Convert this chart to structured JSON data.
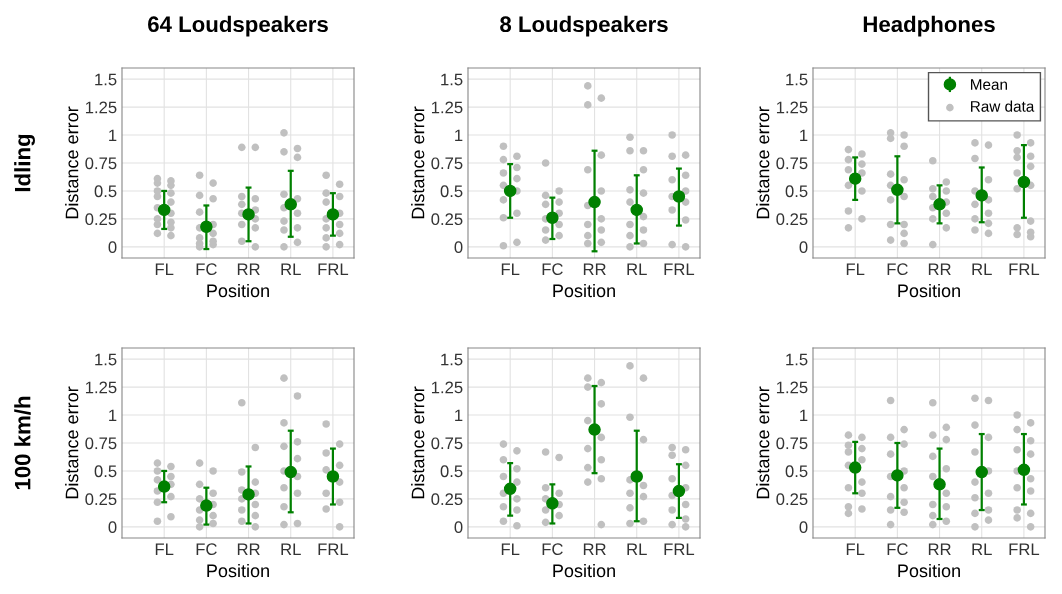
{
  "chart_data": [
    {
      "type": "scatter",
      "title": "64 Loudspeakers",
      "xlabel": "Position",
      "ylabel": "Distance error",
      "annotations": [
        "Idling"
      ],
      "categories": [
        "FL",
        "FC",
        "RR",
        "RL",
        "FRL"
      ],
      "ylim": [
        -0.1,
        1.6
      ],
      "yticks": [
        0,
        0.25,
        0.5,
        0.75,
        1,
        1.25,
        1.5
      ],
      "grid": true,
      "marker": "circle",
      "series": [
        {
          "color": "#c0c0c0",
          "x": [
            "FL",
            "FL",
            "FL",
            "FL",
            "FL",
            "FL",
            "FL",
            "FL",
            "FC",
            "FC",
            "FC",
            "FC",
            "FC",
            "FC",
            "FC",
            "RR",
            "RR",
            "RR",
            "RR",
            "RR",
            "RR",
            "RL",
            "RL",
            "RL",
            "RL",
            "RL",
            "RL",
            "RL",
            "FRL",
            "FRL",
            "FRL",
            "FRL",
            "FRL",
            "FRL",
            "FRL"
          ],
          "values": [
            0.61,
            0.57,
            0.5,
            0.45,
            0.35,
            0.25,
            0.2,
            0.12,
            0.64,
            0.46,
            0.31,
            0.17,
            0.08,
            0.03,
            0.0,
            0.89,
            0.45,
            0.38,
            0.3,
            0.2,
            0.05,
            1.02,
            0.85,
            0.47,
            0.35,
            0.23,
            0.15,
            0.0,
            0.64,
            0.48,
            0.4,
            0.25,
            0.17,
            0.08,
            0.0
          ]
        },
        {
          "color": "#c0c0c0",
          "x": [
            "FL",
            "FL",
            "FL",
            "FL",
            "FL",
            "FL",
            "FL",
            "FL",
            "FC",
            "FC",
            "FC",
            "FC",
            "FC",
            "FC",
            "RR",
            "RR",
            "RR",
            "RR",
            "RR",
            "RR",
            "RL",
            "RL",
            "RL",
            "RL",
            "RL",
            "RL",
            "FRL",
            "FRL",
            "FRL",
            "FRL",
            "FRL",
            "FRL"
          ],
          "values": [
            0.59,
            0.55,
            0.48,
            0.4,
            0.3,
            0.22,
            0.17,
            0.1,
            0.57,
            0.43,
            0.2,
            0.12,
            0.05,
            0.02,
            0.89,
            0.43,
            0.33,
            0.25,
            0.17,
            0.0,
            0.88,
            0.8,
            0.43,
            0.3,
            0.17,
            0.04,
            0.56,
            0.45,
            0.3,
            0.2,
            0.12,
            0.02
          ]
        },
        {
          "color": "#008000",
          "values": [
            0.33,
            0.18,
            0.29,
            0.38,
            0.29
          ],
          "errors": [
            [
              0.16,
              0.5
            ],
            [
              -0.02,
              0.37
            ],
            [
              0.05,
              0.53
            ],
            [
              0.09,
              0.68
            ],
            [
              0.1,
              0.48
            ]
          ]
        }
      ]
    },
    {
      "type": "scatter",
      "title": "8 Loudspeakers",
      "xlabel": "Position",
      "ylabel": "Distance error",
      "categories": [
        "FL",
        "FC",
        "RR",
        "RL",
        "FRL"
      ],
      "ylim": [
        -0.1,
        1.6
      ],
      "yticks": [
        0,
        0.25,
        0.5,
        0.75,
        1,
        1.25,
        1.5
      ],
      "grid": true,
      "marker": "circle",
      "series": [
        {
          "color": "#c0c0c0",
          "x": [
            "FL",
            "FL",
            "FL",
            "FL",
            "FL",
            "FL",
            "FL",
            "FC",
            "FC",
            "FC",
            "FC",
            "FC",
            "FC",
            "RR",
            "RR",
            "RR",
            "RR",
            "RR",
            "RR",
            "RR",
            "RL",
            "RL",
            "RL",
            "RL",
            "RL",
            "RL",
            "RL",
            "FRL",
            "FRL",
            "FRL",
            "FRL",
            "FRL",
            "FRL"
          ],
          "values": [
            0.9,
            0.78,
            0.66,
            0.55,
            0.42,
            0.26,
            0.01,
            0.75,
            0.46,
            0.38,
            0.25,
            0.15,
            0.06,
            1.44,
            1.27,
            0.69,
            0.37,
            0.2,
            0.1,
            0.03,
            0.98,
            0.86,
            0.51,
            0.4,
            0.2,
            0.1,
            0.0,
            1.0,
            0.81,
            0.6,
            0.45,
            0.33,
            0.02
          ]
        },
        {
          "color": "#c0c0c0",
          "x": [
            "FL",
            "FL",
            "FL",
            "FL",
            "FL",
            "FL",
            "FC",
            "FC",
            "FC",
            "FC",
            "FC",
            "RR",
            "RR",
            "RR",
            "RR",
            "RR",
            "RR",
            "RL",
            "RL",
            "RL",
            "RL",
            "RL",
            "RL",
            "FRL",
            "FRL",
            "FRL",
            "FRL",
            "FRL",
            "FRL"
          ],
          "values": [
            0.81,
            0.71,
            0.61,
            0.5,
            0.3,
            0.04,
            0.5,
            0.4,
            0.3,
            0.2,
            0.1,
            1.33,
            0.82,
            0.5,
            0.25,
            0.15,
            0.04,
            0.86,
            0.69,
            0.48,
            0.27,
            0.15,
            0.03,
            0.82,
            0.64,
            0.5,
            0.4,
            0.24,
            0.0
          ]
        },
        {
          "color": "#008000",
          "values": [
            0.5,
            0.26,
            0.4,
            0.33,
            0.45
          ],
          "errors": [
            [
              0.26,
              0.74
            ],
            [
              0.07,
              0.44
            ],
            [
              -0.04,
              0.86
            ],
            [
              0.03,
              0.64
            ],
            [
              0.19,
              0.7
            ]
          ]
        }
      ]
    },
    {
      "type": "scatter",
      "title": "Headphones",
      "ylabel": "Distance error",
      "xlabel": "Position",
      "categories": [
        "FL",
        "FC",
        "RR",
        "RL",
        "FRL"
      ],
      "ylim": [
        -0.1,
        1.6
      ],
      "yticks": [
        0,
        0.25,
        0.5,
        0.75,
        1,
        1.25,
        1.5
      ],
      "grid": true,
      "marker": "circle",
      "legend": "top right",
      "series": [
        {
          "name": "Raw data",
          "color": "#c0c0c0",
          "x": [
            "FL",
            "FL",
            "FL",
            "FL",
            "FL",
            "FL",
            "FC",
            "FC",
            "FC",
            "FC",
            "FC",
            "FC",
            "FC",
            "RR",
            "RR",
            "RR",
            "RR",
            "RR",
            "RR",
            "RL",
            "RL",
            "RL",
            "RL",
            "RL",
            "RL",
            "FRL",
            "FRL",
            "FRL",
            "FRL",
            "FRL",
            "FRL",
            "FRL"
          ],
          "values": [
            0.87,
            0.78,
            0.69,
            0.55,
            0.32,
            0.17,
            1.02,
            0.97,
            0.65,
            0.55,
            0.42,
            0.2,
            0.06,
            0.77,
            0.52,
            0.45,
            0.35,
            0.25,
            0.02,
            0.93,
            0.79,
            0.5,
            0.38,
            0.25,
            0.15,
            1.0,
            0.86,
            0.8,
            0.66,
            0.52,
            0.17,
            0.11
          ]
        },
        {
          "color": "#c0c0c0",
          "x": [
            "FL",
            "FL",
            "FL",
            "FL",
            "FL",
            "FC",
            "FC",
            "FC",
            "FC",
            "FC",
            "FC",
            "FC",
            "RR",
            "RR",
            "RR",
            "RR",
            "RR",
            "RL",
            "RL",
            "RL",
            "RL",
            "RL",
            "RL",
            "FRL",
            "FRL",
            "FRL",
            "FRL",
            "FRL",
            "FRL",
            "FRL"
          ],
          "values": [
            0.83,
            0.74,
            0.66,
            0.5,
            0.25,
            1.0,
            0.9,
            0.6,
            0.45,
            0.2,
            0.12,
            0.03,
            0.58,
            0.5,
            0.4,
            0.3,
            0.17,
            0.91,
            0.6,
            0.42,
            0.3,
            0.21,
            0.12,
            0.93,
            0.81,
            0.72,
            0.55,
            0.23,
            0.13,
            0.09
          ]
        },
        {
          "name": "Mean",
          "color": "#008000",
          "values": [
            0.61,
            0.51,
            0.38,
            0.46,
            0.58
          ],
          "errors": [
            [
              0.42,
              0.8
            ],
            [
              0.21,
              0.81
            ],
            [
              0.21,
              0.55
            ],
            [
              0.22,
              0.71
            ],
            [
              0.26,
              0.91
            ]
          ]
        }
      ]
    },
    {
      "type": "scatter",
      "xlabel": "Position",
      "ylabel": "Distance error",
      "annotations": [
        "100 km/h"
      ],
      "categories": [
        "FL",
        "FC",
        "RR",
        "RL",
        "FRL"
      ],
      "ylim": [
        -0.1,
        1.6
      ],
      "yticks": [
        0,
        0.25,
        0.5,
        0.75,
        1,
        1.25,
        1.5
      ],
      "grid": true,
      "marker": "circle",
      "series": [
        {
          "color": "#c0c0c0",
          "x": [
            "FL",
            "FL",
            "FL",
            "FL",
            "FL",
            "FL",
            "FC",
            "FC",
            "FC",
            "FC",
            "FC",
            "FC",
            "RR",
            "RR",
            "RR",
            "RR",
            "RR",
            "RR",
            "RL",
            "RL",
            "RL",
            "RL",
            "RL",
            "RL",
            "RL",
            "FRL",
            "FRL",
            "FRL",
            "FRL",
            "FRL"
          ],
          "values": [
            0.57,
            0.5,
            0.42,
            0.32,
            0.22,
            0.05,
            0.57,
            0.38,
            0.25,
            0.15,
            0.06,
            0.0,
            1.11,
            0.49,
            0.33,
            0.25,
            0.15,
            0.05,
            1.33,
            0.93,
            0.72,
            0.5,
            0.35,
            0.18,
            0.02,
            0.92,
            0.66,
            0.51,
            0.3,
            0.16
          ]
        },
        {
          "color": "#c0c0c0",
          "x": [
            "FL",
            "FL",
            "FL",
            "FL",
            "FL",
            "FC",
            "FC",
            "FC",
            "FC",
            "FC",
            "RR",
            "RR",
            "RR",
            "RR",
            "RR",
            "RR",
            "RL",
            "RL",
            "RL",
            "RL",
            "RL",
            "RL",
            "FRL",
            "FRL",
            "FRL",
            "FRL",
            "FRL"
          ],
          "values": [
            0.54,
            0.45,
            0.38,
            0.27,
            0.09,
            0.5,
            0.3,
            0.2,
            0.1,
            0.03,
            0.71,
            0.4,
            0.3,
            0.2,
            0.1,
            0.0,
            1.17,
            0.76,
            0.61,
            0.45,
            0.3,
            0.03,
            0.74,
            0.55,
            0.4,
            0.22,
            0.0
          ]
        },
        {
          "color": "#008000",
          "values": [
            0.36,
            0.19,
            0.29,
            0.49,
            0.45
          ],
          "errors": [
            [
              0.22,
              0.5
            ],
            [
              0.02,
              0.35
            ],
            [
              0.03,
              0.54
            ],
            [
              0.13,
              0.86
            ],
            [
              0.2,
              0.7
            ]
          ]
        }
      ]
    },
    {
      "type": "scatter",
      "xlabel": "Position",
      "ylabel": "Distance error",
      "categories": [
        "FL",
        "FC",
        "RR",
        "RL",
        "FRL"
      ],
      "ylim": [
        -0.1,
        1.6
      ],
      "yticks": [
        0,
        0.25,
        0.5,
        0.75,
        1,
        1.25,
        1.5
      ],
      "grid": true,
      "marker": "circle",
      "series": [
        {
          "color": "#c0c0c0",
          "x": [
            "FL",
            "FL",
            "FL",
            "FL",
            "FL",
            "FL",
            "FC",
            "FC",
            "FC",
            "FC",
            "FC",
            "RR",
            "RR",
            "RR",
            "RR",
            "RR",
            "RR",
            "RL",
            "RL",
            "RL",
            "RL",
            "RL",
            "RL",
            "FRL",
            "FRL",
            "FRL",
            "FRL",
            "FRL",
            "FRL"
          ],
          "values": [
            0.74,
            0.6,
            0.45,
            0.3,
            0.18,
            0.05,
            0.67,
            0.35,
            0.25,
            0.15,
            0.04,
            1.33,
            1.25,
            0.95,
            0.7,
            0.53,
            0.4,
            1.44,
            0.98,
            0.42,
            0.3,
            0.17,
            0.03,
            0.71,
            0.64,
            0.43,
            0.28,
            0.15,
            0.02
          ]
        },
        {
          "color": "#c0c0c0",
          "x": [
            "FL",
            "FL",
            "FL",
            "FL",
            "FL",
            "FL",
            "FC",
            "FC",
            "FC",
            "FC",
            "RR",
            "RR",
            "RR",
            "RR",
            "RR",
            "RR",
            "RL",
            "RL",
            "RL",
            "RL",
            "RL",
            "FRL",
            "FRL",
            "FRL",
            "FRL",
            "FRL",
            "FRL"
          ],
          "values": [
            0.68,
            0.52,
            0.4,
            0.25,
            0.15,
            0.01,
            0.62,
            0.3,
            0.2,
            0.1,
            1.29,
            1.1,
            0.8,
            0.6,
            0.43,
            0.02,
            1.33,
            0.78,
            0.37,
            0.27,
            0.05,
            0.69,
            0.55,
            0.35,
            0.2,
            0.07,
            0.0
          ]
        },
        {
          "color": "#008000",
          "values": [
            0.34,
            0.21,
            0.87,
            0.45,
            0.32
          ],
          "errors": [
            [
              0.1,
              0.57
            ],
            [
              0.03,
              0.38
            ],
            [
              0.48,
              1.26
            ],
            [
              0.05,
              0.86
            ],
            [
              0.08,
              0.56
            ]
          ]
        }
      ]
    },
    {
      "type": "scatter",
      "xlabel": "Position",
      "ylabel": "Distance error",
      "categories": [
        "FL",
        "FC",
        "RR",
        "RL",
        "FRL"
      ],
      "ylim": [
        -0.1,
        1.6
      ],
      "yticks": [
        0,
        0.25,
        0.5,
        0.75,
        1,
        1.25,
        1.5
      ],
      "grid": true,
      "marker": "circle",
      "series": [
        {
          "color": "#c0c0c0",
          "x": [
            "FL",
            "FL",
            "FL",
            "FL",
            "FL",
            "FL",
            "FL",
            "FC",
            "FC",
            "FC",
            "FC",
            "FC",
            "FC",
            "FC",
            "RR",
            "RR",
            "RR",
            "RR",
            "RR",
            "RR",
            "RR",
            "RL",
            "RL",
            "RL",
            "RL",
            "RL",
            "RL",
            "RL",
            "FRL",
            "FRL",
            "FRL",
            "FRL",
            "FRL",
            "FRL",
            "FRL"
          ],
          "values": [
            0.82,
            0.73,
            0.67,
            0.55,
            0.35,
            0.18,
            0.12,
            1.13,
            0.8,
            0.65,
            0.45,
            0.27,
            0.15,
            0.02,
            1.11,
            0.82,
            0.63,
            0.45,
            0.2,
            0.1,
            0.02,
            1.15,
            0.91,
            0.67,
            0.4,
            0.26,
            0.12,
            0.0,
            1.0,
            0.87,
            0.69,
            0.5,
            0.35,
            0.15,
            0.08
          ]
        },
        {
          "color": "#c0c0c0",
          "x": [
            "FL",
            "FL",
            "FL",
            "FL",
            "FL",
            "FL",
            "FC",
            "FC",
            "FC",
            "FC",
            "FC",
            "FC",
            "RR",
            "RR",
            "RR",
            "RR",
            "RR",
            "RR",
            "RL",
            "RL",
            "RL",
            "RL",
            "RL",
            "RL",
            "FRL",
            "FRL",
            "FRL",
            "FRL",
            "FRL",
            "FRL",
            "FRL"
          ],
          "values": [
            0.8,
            0.7,
            0.6,
            0.4,
            0.3,
            0.16,
            0.87,
            0.74,
            0.5,
            0.35,
            0.22,
            0.13,
            0.89,
            0.78,
            0.52,
            0.3,
            0.18,
            0.05,
            1.13,
            0.8,
            0.5,
            0.3,
            0.15,
            0.06,
            0.93,
            0.77,
            0.65,
            0.43,
            0.32,
            0.12,
            0.0
          ]
        },
        {
          "color": "#008000",
          "values": [
            0.53,
            0.46,
            0.38,
            0.49,
            0.51
          ],
          "errors": [
            [
              0.3,
              0.76
            ],
            [
              0.17,
              0.75
            ],
            [
              0.07,
              0.7
            ],
            [
              0.15,
              0.83
            ],
            [
              0.2,
              0.83
            ]
          ]
        }
      ]
    }
  ]
}
